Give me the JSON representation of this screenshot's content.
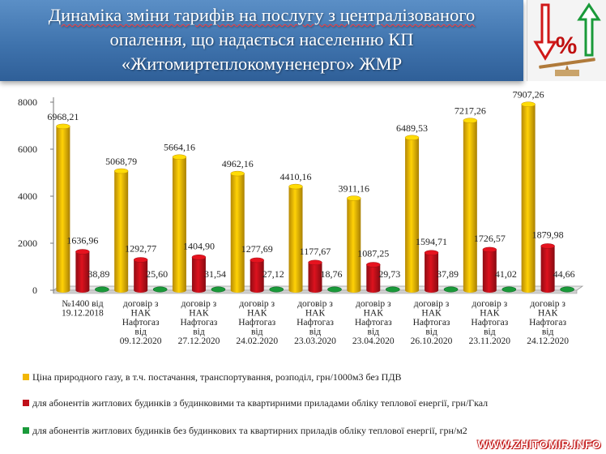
{
  "header": {
    "title_line1": "Динаміка зміни тарифів на послугу з централізованого",
    "title_line2": "опалення, що надається населенню КП",
    "title_line3": "«Житомиртеплокомуненерго» ЖМР",
    "colors": {
      "background": "#3f73ad",
      "text": "#ffffff"
    }
  },
  "logo": {
    "icon": "tariff-percent-scale-icon",
    "symbol": "%"
  },
  "chart_data": {
    "type": "bar",
    "categories": [
      [
        "№1400 від",
        "19.12.2018"
      ],
      [
        "договір з",
        "НАК",
        "Нафтогаз",
        "від",
        "09.12.2020"
      ],
      [
        "договір з",
        "НАК",
        "Нафтогаз",
        "від",
        "27.12.2020"
      ],
      [
        "договір з",
        "НАК",
        "Нафтогаз",
        "від",
        "24.02.2020"
      ],
      [
        "договір з",
        "НАК",
        "Нафтогаз",
        "від",
        "23.03.2020"
      ],
      [
        "договір з",
        "НАК",
        "Нафтогаз",
        "від",
        "23.04.2020"
      ],
      [
        "договір з",
        "НАК",
        "Нафтогаз",
        "від",
        "26.10.2020"
      ],
      [
        "договір з",
        "НАК",
        "Нафтогаз",
        "від",
        "23.11.2020"
      ],
      [
        "договір з",
        "НАК",
        "Нафтогаз",
        "від",
        "24.12.2020"
      ]
    ],
    "series": [
      {
        "name": "Ціна природного газу, в т.ч. постачання, транспортування, розподіл, грн/1000м3 без ПДВ",
        "color": "#f2b705",
        "values": [
          6968.21,
          5068.79,
          5664.16,
          4962.16,
          4410.16,
          3911.16,
          6489.53,
          7217.26,
          7907.26
        ],
        "labels": [
          "6968,21",
          "5068,79",
          "5664,16",
          "4962,16",
          "4410,16",
          "3911,16",
          "6489,53",
          "7217,26",
          "7907,26"
        ]
      },
      {
        "name": "для абонентів житлових будинків з будинковими та квартирними приладами обліку теплової енергії, грн/Гкал",
        "color": "#c0101a",
        "values": [
          1636.96,
          1292.77,
          1404.9,
          1277.69,
          1177.67,
          1087.25,
          1594.71,
          1726.57,
          1879.98
        ],
        "labels": [
          "1636,96",
          "1292,77",
          "1404,90",
          "1277,69",
          "1177,67",
          "1087,25",
          "1594,71",
          "1726,57",
          "1879,98"
        ]
      },
      {
        "name": "для абонентів житлових будинків без будинкових та квартирних приладів обліку теплової енергії, грн/м2",
        "color": "#1a9a3a",
        "values": [
          38.89,
          25.6,
          31.54,
          27.12,
          18.76,
          29.73,
          37.89,
          41.02,
          44.66
        ],
        "labels": [
          "38,89",
          "25,60",
          "31,54",
          "27,12",
          "18,76",
          "29,73",
          "37,89",
          "41,02",
          "44,66"
        ]
      }
    ],
    "yticks": [
      "0",
      "2000",
      "4000",
      "6000",
      "8000"
    ],
    "ylim": [
      0,
      8000
    ],
    "grid": false,
    "legend_position": "bottom"
  },
  "watermark": "WWW.ZHITOMIR.INFO"
}
